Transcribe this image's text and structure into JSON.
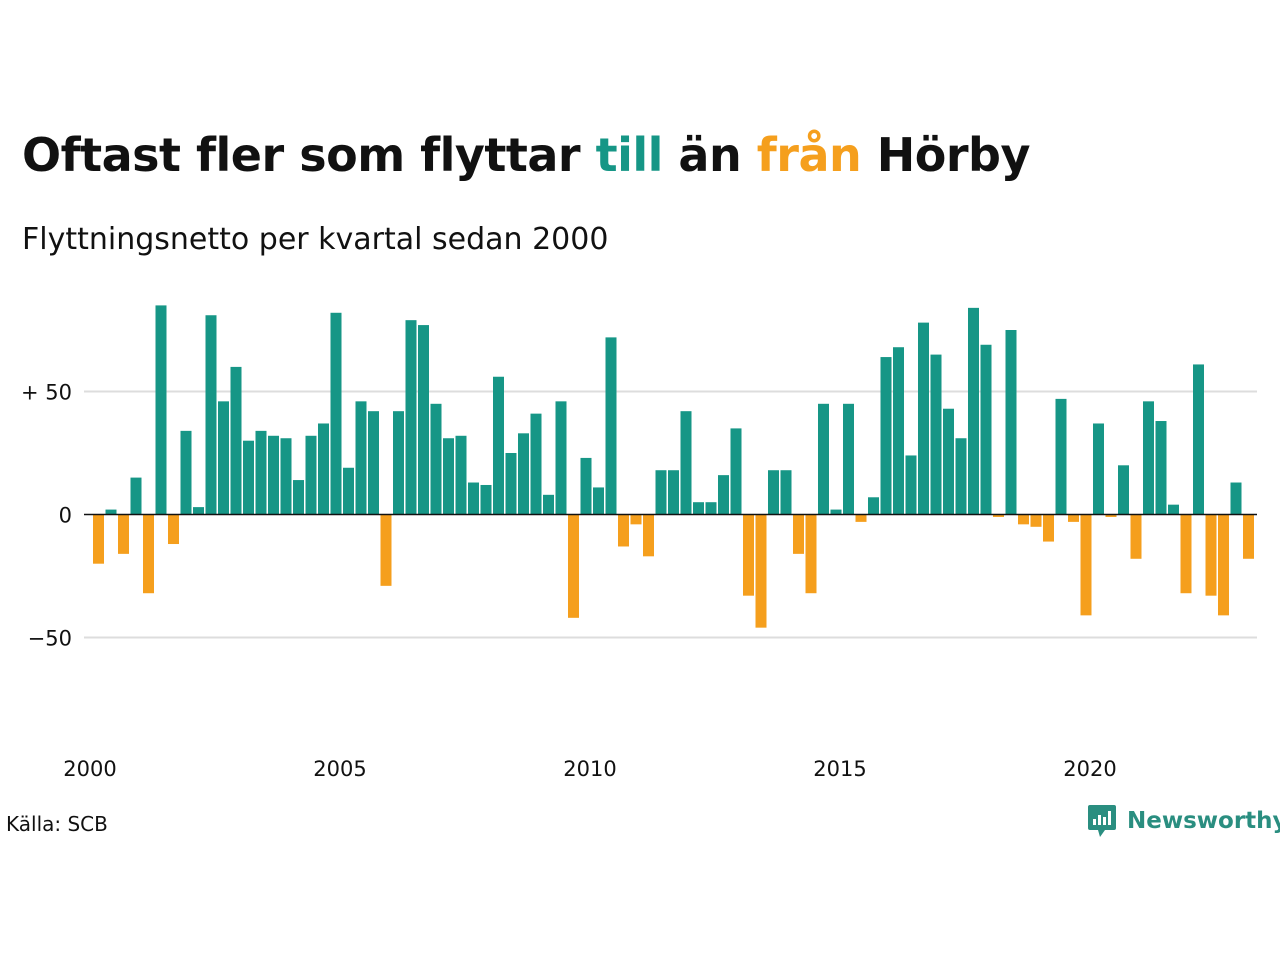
{
  "header": {
    "title_parts": [
      "Oftast fler som flyttar ",
      "till",
      " än ",
      "från",
      " Hörby"
    ],
    "subtitle": "Flyttningsnetto per kvartal sedan 2000"
  },
  "footer": {
    "source": "Källa: SCB",
    "brand": "Newsworthy"
  },
  "colors": {
    "positive": "#169686",
    "negative": "#f59f1d",
    "brand": "#2a8e80",
    "text": "#111111",
    "grid": "#dddddd"
  },
  "icons": {
    "brand_logo": "newsworthy-logo-icon"
  },
  "chart_data": {
    "type": "bar",
    "title": "Oftast fler som flyttar till än från Hörby",
    "subtitle": "Flyttningsnetto per kvartal sedan 2000",
    "x_start": "2000 Q1",
    "frequency": "quarterly",
    "x_tick_labels": [
      "2000",
      "2005",
      "2010",
      "2015",
      "2020"
    ],
    "y_tick_values": [
      -50,
      0,
      50
    ],
    "y_tick_labels": [
      "−50",
      "0",
      "+ 50"
    ],
    "ylim": [
      -80,
      90
    ],
    "grid": "horizontal",
    "legend": "none",
    "values": [
      -20,
      2,
      -16,
      15,
      -32,
      85,
      -12,
      34,
      3,
      81,
      46,
      60,
      30,
      34,
      32,
      31,
      14,
      32,
      37,
      82,
      19,
      46,
      42,
      -29,
      42,
      79,
      77,
      45,
      31,
      32,
      13,
      12,
      56,
      25,
      33,
      41,
      8,
      46,
      -42,
      23,
      11,
      72,
      -13,
      -4,
      -17,
      18,
      18,
      42,
      5,
      5,
      16,
      35,
      -33,
      -46,
      18,
      18,
      -16,
      -32,
      45,
      2,
      45,
      -3,
      7,
      64,
      68,
      24,
      78,
      65,
      43,
      31,
      84,
      69,
      -1,
      75,
      -4,
      -5,
      -11,
      47,
      -3,
      -41,
      37,
      -1,
      20,
      -18,
      46,
      38,
      4,
      -32,
      61,
      -33,
      -41,
      13,
      -18
    ]
  }
}
